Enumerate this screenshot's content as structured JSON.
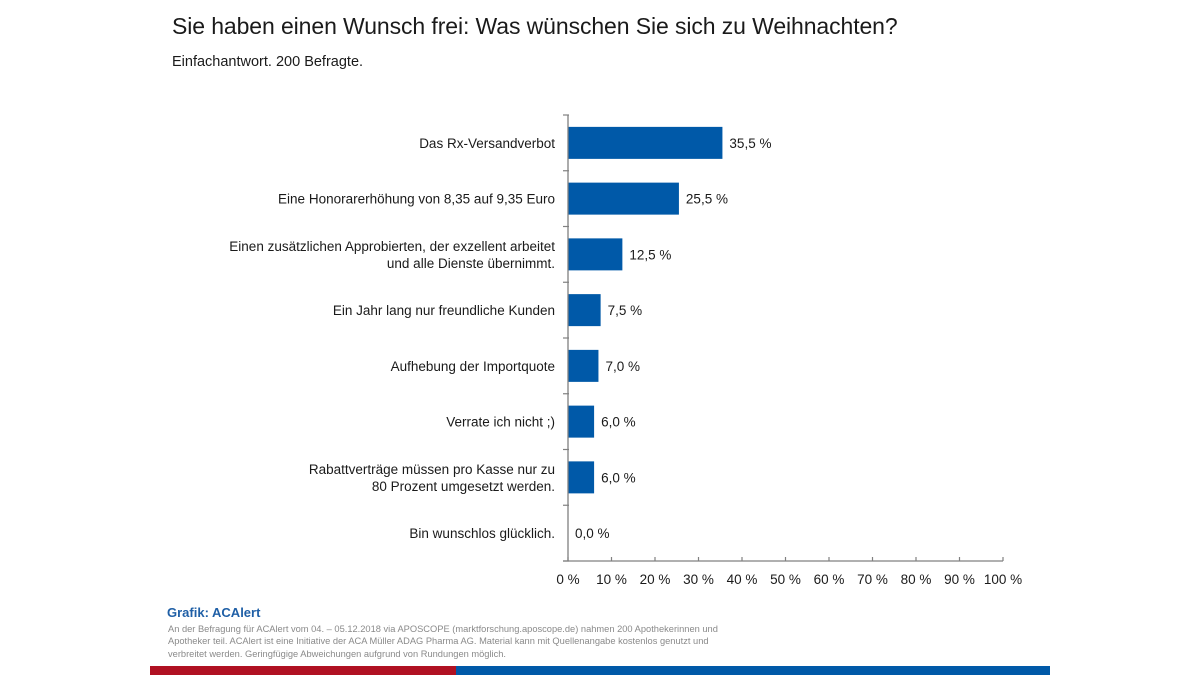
{
  "header": {
    "title": "Sie haben einen Wunsch frei: Was wünschen Sie sich zu Weihnachten?",
    "subtitle": "Einfachantwort. 200 Befragte."
  },
  "colors": {
    "bar": "#0059a8",
    "axis": "#808080",
    "text": "#1a1a1a",
    "credit": "#1f5fa6",
    "footnote": "#8a8a8a",
    "stripe_red": "#b01122",
    "stripe_blue": "#0059a8"
  },
  "chart_data": {
    "type": "bar",
    "orientation": "horizontal",
    "title": "Sie haben einen Wunsch frei: Was wünschen Sie sich zu Weihnachten?",
    "subtitle": "Einfachantwort. 200 Befragte.",
    "xlabel": "",
    "ylabel": "",
    "xlim": [
      0,
      100
    ],
    "x_ticks": [
      0,
      10,
      20,
      30,
      40,
      50,
      60,
      70,
      80,
      90,
      100
    ],
    "x_tick_labels": [
      "0 %",
      "10 %",
      "20 %",
      "30 %",
      "40 %",
      "50 %",
      "60 %",
      "70 %",
      "80 %",
      "90 %",
      "100 %"
    ],
    "grid": false,
    "legend": "none",
    "categories": [
      [
        "Das Rx-Versandverbot"
      ],
      [
        "Eine Honorarerhöhung von 8,35 auf 9,35 Euro"
      ],
      [
        "Einen zusätzlichen Approbierten, der exzellent arbeitet",
        "und alle Dienste übernimmt."
      ],
      [
        "Ein Jahr lang nur freundliche Kunden"
      ],
      [
        "Aufhebung der Importquote"
      ],
      [
        "Verrate ich nicht ;)"
      ],
      [
        "Rabattverträge müssen pro Kasse nur zu",
        "80 Prozent umgesetzt werden."
      ],
      [
        "Bin wunschlos glücklich."
      ]
    ],
    "values": [
      35.5,
      25.5,
      12.5,
      7.5,
      7.0,
      6.0,
      6.0,
      0.0
    ],
    "value_labels": [
      "35,5 %",
      "25,5 %",
      "12,5 %",
      "7,5 %",
      "7,0 %",
      "6,0 %",
      "6,0 %",
      "0,0 %"
    ]
  },
  "footer": {
    "credit": "Grafik: ACAlert",
    "note": "An der Befragung für ACAlert vom 04. – 05.12.2018 via APOSCOPE (marktforschung.aposcope.de) nahmen 200 Apothekerinnen und Apotheker teil. ACAlert ist eine Initiative der ACA Müller ADAG Pharma AG. Material kann mit Quellenangabe kostenlos genutzt und verbreitet werden. Geringfügige Abweichungen aufgrund von Rundungen möglich."
  }
}
